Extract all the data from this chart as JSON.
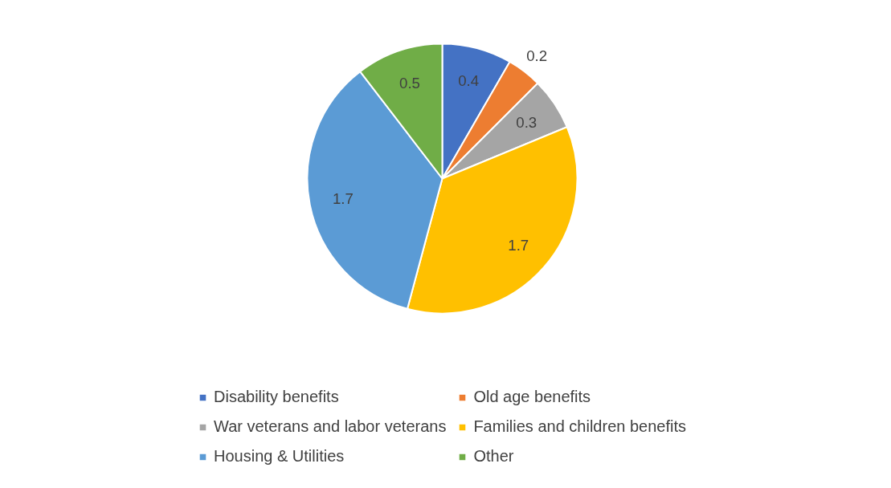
{
  "chart_data": {
    "type": "pie",
    "categories": [
      "Disability benefits",
      "Old age benefits",
      "War veterans and labor veterans",
      "Families and children benefits",
      "Housing & Utilities",
      "Other"
    ],
    "values": [
      0.4,
      0.2,
      0.3,
      1.7,
      1.7,
      0.5
    ],
    "colors": [
      "#4472c4",
      "#ed7d31",
      "#a5a5a5",
      "#ffc000",
      "#5b9bd5",
      "#70ad47"
    ],
    "data_labels": true,
    "legend": "bottom"
  }
}
